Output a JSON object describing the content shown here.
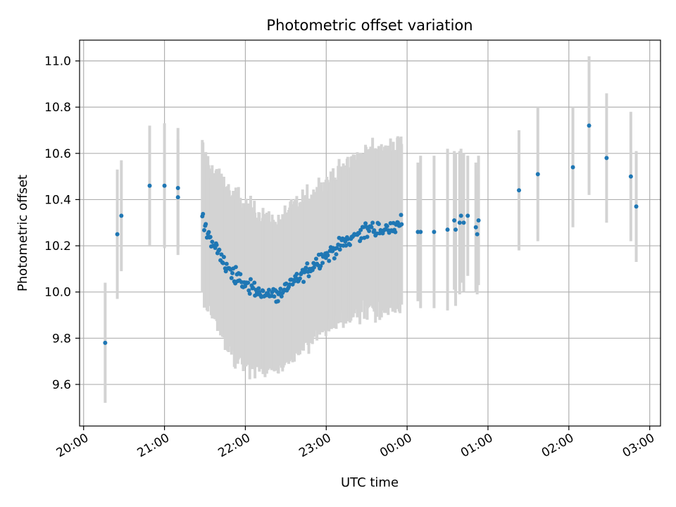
{
  "chart_data": {
    "type": "scatter",
    "title": "Photometric offset variation",
    "xlabel": "UTC time",
    "ylabel": "Photometric offset",
    "xlim": [
      "19:57",
      "03:08"
    ],
    "ylim": [
      9.42,
      11.09
    ],
    "grid": true,
    "x_ticks": [
      "20:00",
      "21:00",
      "22:00",
      "23:00",
      "00:00",
      "01:00",
      "02:00",
      "03:00"
    ],
    "y_ticks": [
      "9.6",
      "9.8",
      "10.0",
      "10.2",
      "10.4",
      "10.6",
      "10.8",
      "11.0"
    ],
    "colors": {
      "marker": "#1f77b4",
      "errorbar": "#d3d3d3",
      "grid": "#b0b0b0"
    },
    "sparse_points": [
      {
        "x": "20:16",
        "y": 9.78,
        "err": 0.26
      },
      {
        "x": "20:25",
        "y": 10.25,
        "err": 0.28
      },
      {
        "x": "20:28",
        "y": 10.33,
        "err": 0.24
      },
      {
        "x": "20:49",
        "y": 10.46,
        "err": 0.26
      },
      {
        "x": "21:00",
        "y": 10.46,
        "err": 0.27
      },
      {
        "x": "21:10",
        "y": 10.45,
        "err": 0.26
      },
      {
        "x": "21:10",
        "y": 10.41,
        "err": 0.25
      },
      {
        "x": "00:08",
        "y": 10.26,
        "err": 0.3
      },
      {
        "x": "00:10",
        "y": 10.26,
        "err": 0.33
      },
      {
        "x": "00:20",
        "y": 10.26,
        "err": 0.33
      },
      {
        "x": "00:30",
        "y": 10.27,
        "err": 0.35
      },
      {
        "x": "00:35",
        "y": 10.31,
        "err": 0.3
      },
      {
        "x": "00:36",
        "y": 10.27,
        "err": 0.33
      },
      {
        "x": "00:39",
        "y": 10.3,
        "err": 0.31
      },
      {
        "x": "00:40",
        "y": 10.33,
        "err": 0.29
      },
      {
        "x": "00:42",
        "y": 10.3,
        "err": 0.3
      },
      {
        "x": "00:45",
        "y": 10.33,
        "err": 0.26
      },
      {
        "x": "00:51",
        "y": 10.28,
        "err": 0.28
      },
      {
        "x": "00:52",
        "y": 10.25,
        "err": 0.26
      },
      {
        "x": "00:53",
        "y": 10.31,
        "err": 0.28
      },
      {
        "x": "01:23",
        "y": 10.44,
        "err": 0.26
      },
      {
        "x": "01:37",
        "y": 10.51,
        "err": 0.29
      },
      {
        "x": "02:03",
        "y": 10.54,
        "err": 0.26
      },
      {
        "x": "02:15",
        "y": 10.72,
        "err": 0.3
      },
      {
        "x": "02:28",
        "y": 10.58,
        "err": 0.28
      },
      {
        "x": "02:46",
        "y": 10.5,
        "err": 0.28
      },
      {
        "x": "02:50",
        "y": 10.37,
        "err": 0.24
      }
    ],
    "dense_series": {
      "x_start": "21:28",
      "x_end": "23:56",
      "points": 220,
      "trend": [
        {
          "x": "21:28",
          "y": 10.31,
          "err": 0.32
        },
        {
          "x": "21:35",
          "y": 10.22,
          "err": 0.31
        },
        {
          "x": "21:45",
          "y": 10.12,
          "err": 0.33
        },
        {
          "x": "21:55",
          "y": 10.05,
          "err": 0.35
        },
        {
          "x": "22:05",
          "y": 10.02,
          "err": 0.34
        },
        {
          "x": "22:15",
          "y": 9.99,
          "err": 0.33
        },
        {
          "x": "22:25",
          "y": 9.99,
          "err": 0.32
        },
        {
          "x": "22:35",
          "y": 10.04,
          "err": 0.32
        },
        {
          "x": "22:45",
          "y": 10.09,
          "err": 0.32
        },
        {
          "x": "22:55",
          "y": 10.14,
          "err": 0.31
        },
        {
          "x": "23:05",
          "y": 10.18,
          "err": 0.32
        },
        {
          "x": "23:15",
          "y": 10.22,
          "err": 0.33
        },
        {
          "x": "23:25",
          "y": 10.26,
          "err": 0.34
        },
        {
          "x": "23:35",
          "y": 10.27,
          "err": 0.35
        },
        {
          "x": "23:45",
          "y": 10.27,
          "err": 0.35
        },
        {
          "x": "23:56",
          "y": 10.3,
          "err": 0.35
        }
      ],
      "scatter_sd": 0.025
    }
  }
}
